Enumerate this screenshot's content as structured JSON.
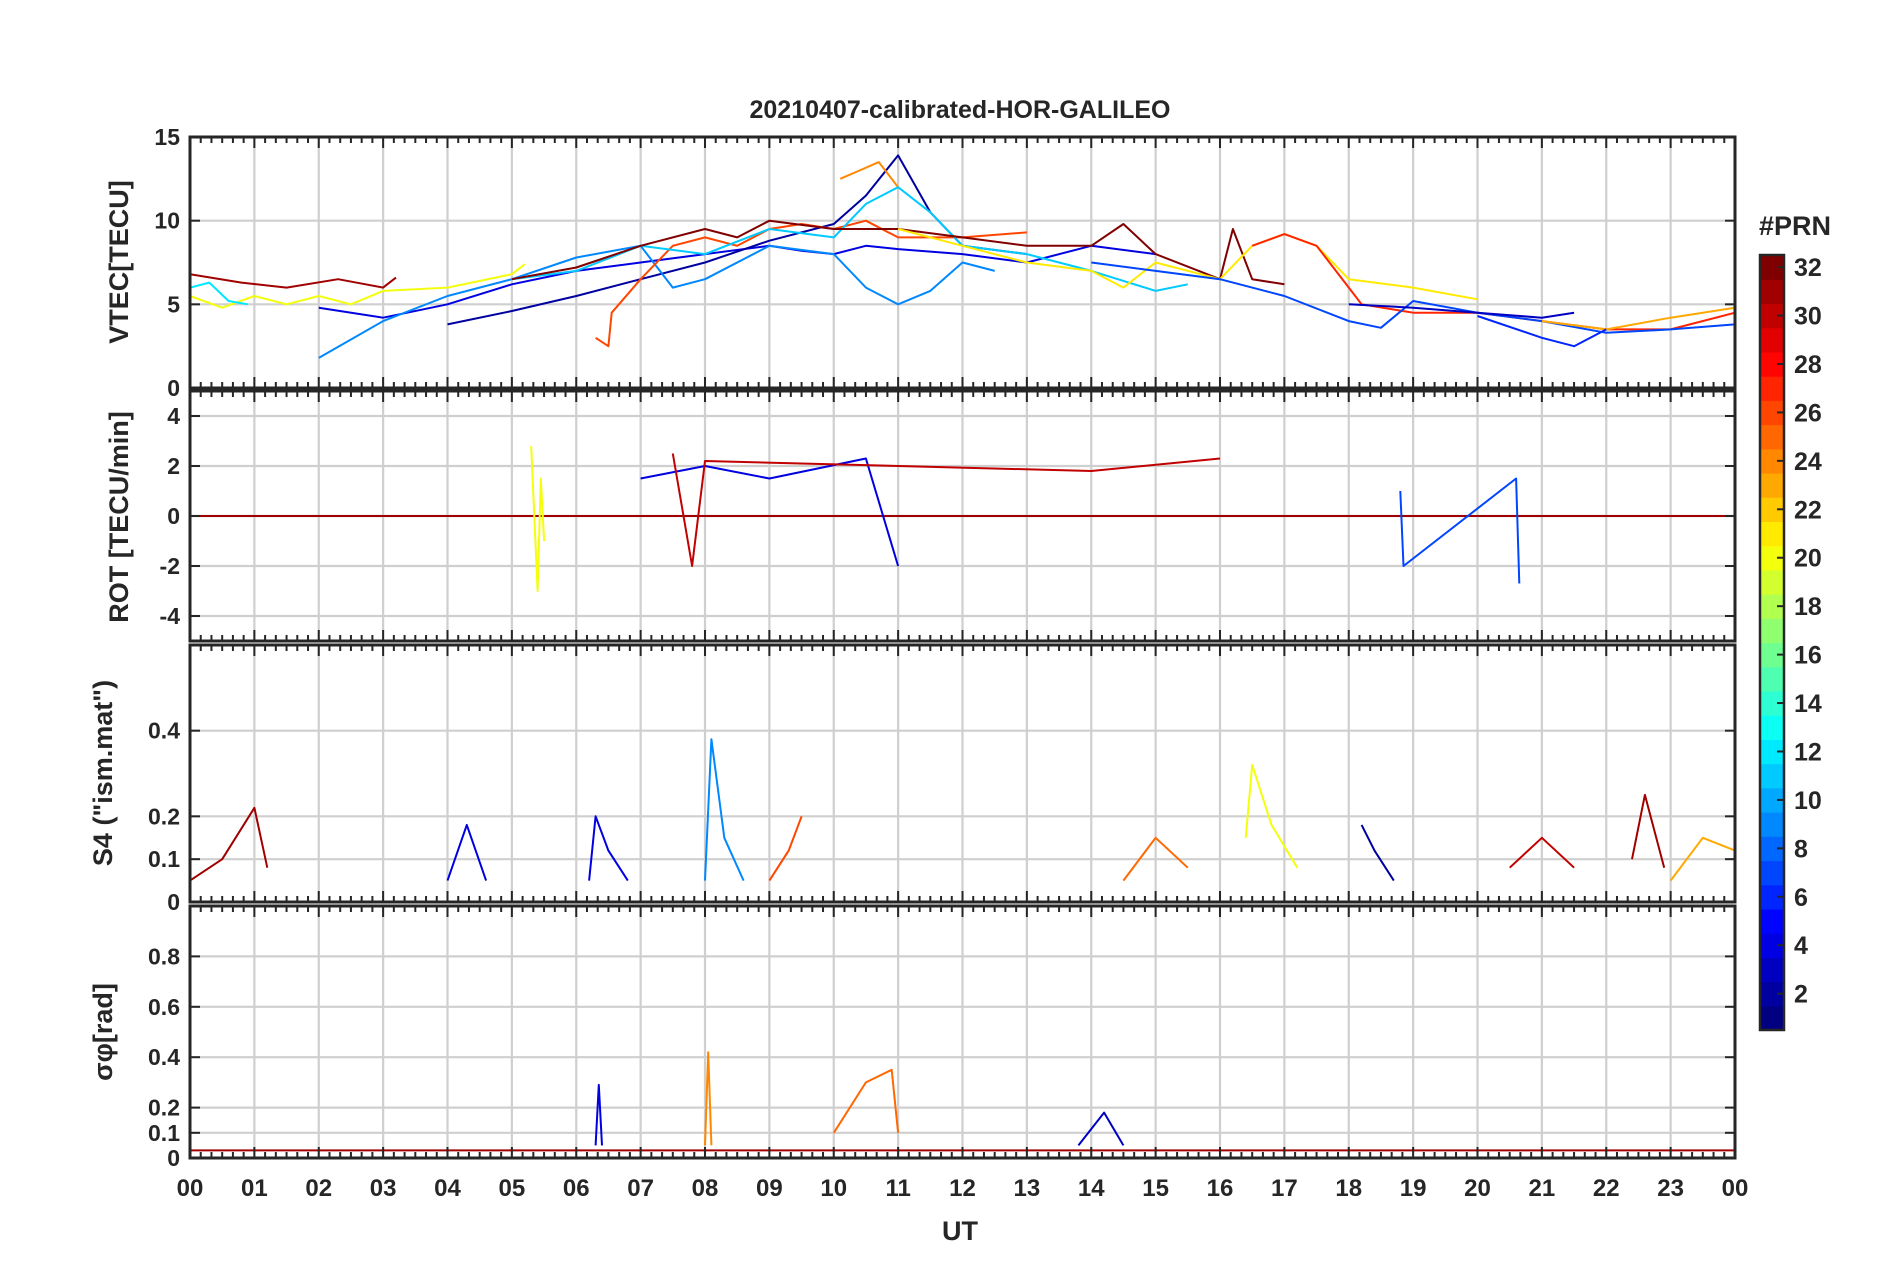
{
  "chart_data": {
    "type": "line",
    "title": "20210407-calibrated-HOR-GALILEO",
    "xlabel": "UT",
    "x_tick_labels": [
      "00",
      "01",
      "02",
      "03",
      "04",
      "05",
      "06",
      "07",
      "08",
      "09",
      "10",
      "11",
      "12",
      "13",
      "14",
      "15",
      "16",
      "17",
      "18",
      "19",
      "20",
      "21",
      "22",
      "23",
      "00"
    ],
    "x_range_hours": [
      0,
      24
    ],
    "grid": true,
    "colorbar": {
      "title": "#PRN",
      "range": [
        1,
        32
      ],
      "tick_labels": [
        "2",
        "4",
        "6",
        "8",
        "10",
        "12",
        "14",
        "16",
        "18",
        "20",
        "22",
        "24",
        "26",
        "28",
        "30",
        "32"
      ],
      "colormap": "jet"
    },
    "panels": [
      {
        "ylabel": "VTEC[TECU]",
        "ylim": [
          0,
          15
        ],
        "y_ticks": [
          0,
          5,
          10,
          15
        ],
        "y_tick_labels": [
          "0",
          "5",
          "10",
          "15"
        ],
        "series": [
          {
            "prn": 31,
            "t": [
              0.0,
              0.8,
              1.5,
              2.3,
              3.0,
              3.2
            ],
            "v": [
              6.8,
              6.3,
              6.0,
              6.5,
              6.0,
              6.6
            ]
          },
          {
            "prn": 20,
            "t": [
              0.0,
              0.5,
              1.0,
              1.5,
              2.0,
              2.5,
              3.0,
              4.0,
              5.0,
              5.2
            ],
            "v": [
              5.5,
              4.8,
              5.5,
              5.0,
              5.5,
              5.0,
              5.8,
              6.0,
              6.8,
              7.4
            ]
          },
          {
            "prn": 12,
            "t": [
              0.0,
              0.3,
              0.6,
              0.9
            ],
            "v": [
              6.0,
              6.3,
              5.2,
              5.0
            ]
          },
          {
            "prn": 4,
            "t": [
              2.0,
              3.0,
              4.0,
              5.0,
              6.0,
              7.0,
              8.0,
              9.0,
              9.5,
              10.0,
              10.5,
              11.0,
              12.0,
              13.0,
              14.0,
              15.0
            ],
            "v": [
              4.8,
              4.2,
              5.0,
              6.2,
              7.0,
              7.5,
              8.0,
              8.5,
              8.2,
              8.0,
              8.5,
              8.3,
              8.0,
              7.5,
              8.5,
              8.0
            ]
          },
          {
            "prn": 2,
            "t": [
              4.0,
              5.0,
              6.0,
              7.0,
              8.0,
              9.0,
              10.0,
              10.5,
              11.0,
              11.5,
              12.0,
              13.0
            ],
            "v": [
              3.8,
              4.6,
              5.5,
              6.5,
              7.5,
              8.8,
              9.8,
              11.5,
              13.9,
              10.5,
              8.5,
              8.0
            ]
          },
          {
            "prn": 9,
            "t": [
              2.0,
              3.0,
              4.0,
              5.0,
              6.0,
              7.0,
              7.5,
              8.0,
              9.0,
              10.0,
              10.5,
              11.0,
              11.5,
              12.0,
              12.5
            ],
            "v": [
              1.8,
              4.0,
              5.5,
              6.5,
              7.8,
              8.5,
              6.0,
              6.5,
              8.5,
              8.0,
              6.0,
              5.0,
              5.8,
              7.5,
              7.0
            ]
          },
          {
            "prn": 26,
            "t": [
              6.3,
              6.5,
              6.55,
              7.0,
              7.5,
              8.0,
              8.5,
              9.0,
              9.5,
              10.0,
              10.5,
              11.0,
              12.0,
              13.0
            ],
            "v": [
              3.0,
              2.5,
              4.5,
              6.5,
              8.5,
              9.0,
              8.5,
              9.5,
              9.8,
              9.5,
              10.0,
              9.0,
              9.0,
              9.3
            ]
          },
          {
            "prn": 24,
            "t": [
              10.1,
              10.4,
              10.7,
              11.0
            ],
            "v": [
              12.5,
              13.0,
              13.5,
              12.0
            ]
          },
          {
            "prn": 11,
            "t": [
              5.0,
              6.0,
              7.0,
              8.0,
              9.0,
              10.0,
              10.5,
              11.0,
              11.5,
              12.0,
              13.0,
              14.0,
              15.0,
              15.5
            ],
            "v": [
              6.5,
              7.0,
              8.5,
              8.0,
              9.5,
              9.0,
              11.0,
              12.0,
              10.5,
              8.5,
              8.0,
              7.0,
              5.8,
              6.2
            ]
          },
          {
            "prn": 32,
            "t": [
              5.0,
              6.0,
              7.0,
              8.0,
              8.5,
              9.0,
              10.0,
              11.0,
              12.0,
              13.0,
              14.0,
              14.5,
              15.0,
              16.0,
              16.2,
              16.5,
              17.0
            ],
            "v": [
              6.5,
              7.2,
              8.5,
              9.5,
              9.0,
              10.0,
              9.5,
              9.5,
              9.0,
              8.5,
              8.5,
              9.8,
              8.0,
              6.5,
              9.5,
              6.5,
              6.2
            ]
          },
          {
            "prn": 21,
            "t": [
              11.0,
              12.0,
              13.0,
              14.0,
              14.5,
              15.0,
              16.0,
              16.5,
              17.0,
              17.5,
              18.0,
              19.0,
              20.0
            ],
            "v": [
              9.5,
              8.5,
              7.5,
              7.0,
              6.0,
              7.5,
              6.5,
              8.5,
              9.2,
              8.5,
              6.5,
              6.0,
              5.3
            ]
          },
          {
            "prn": 27,
            "t": [
              16.5,
              17.0,
              17.5,
              18.0,
              18.2,
              19.0,
              20.0,
              21.0,
              22.0,
              23.0,
              24.0
            ],
            "v": [
              8.5,
              9.2,
              8.5,
              6.0,
              5.0,
              4.5,
              4.5,
              4.0,
              3.5,
              3.5,
              4.5
            ]
          },
          {
            "prn": 7,
            "t": [
              14.0,
              15.0,
              16.0,
              17.0,
              18.0,
              18.5,
              19.0,
              20.0,
              21.0,
              22.0,
              23.0,
              24.0
            ],
            "v": [
              7.5,
              7.0,
              6.5,
              5.5,
              4.0,
              3.6,
              5.2,
              4.5,
              4.0,
              3.3,
              3.5,
              3.8
            ]
          },
          {
            "prn": 3,
            "t": [
              18.0,
              19.0,
              20.0,
              21.0,
              21.5
            ],
            "v": [
              5.0,
              4.8,
              4.5,
              4.2,
              4.5
            ]
          },
          {
            "prn": 23,
            "t": [
              21.0,
              22.0,
              23.0,
              24.0
            ],
            "v": [
              4.0,
              3.5,
              4.2,
              4.8
            ]
          },
          {
            "prn": 6,
            "t": [
              20.0,
              21.0,
              21.5,
              22.0
            ],
            "v": [
              4.3,
              3.0,
              2.5,
              3.5
            ]
          }
        ]
      },
      {
        "ylabel": "ROT [TECU/min]",
        "ylim": [
          -5,
          5
        ],
        "y_ticks": [
          -4,
          -2,
          0,
          2,
          4
        ],
        "y_tick_labels": [
          "-4",
          "-2",
          "0",
          "2",
          "4"
        ],
        "series": [
          {
            "prn": 31,
            "t": [
              0,
              24
            ],
            "v": [
              0,
              0
            ]
          },
          {
            "prn": 20,
            "t": [
              5.3,
              5.4,
              5.45,
              5.5
            ],
            "v": [
              2.8,
              -3.0,
              1.5,
              -1.0
            ]
          },
          {
            "prn": 4,
            "t": [
              7.0,
              8.0,
              9.0,
              10.5,
              11.0
            ],
            "v": [
              1.5,
              2.0,
              1.5,
              2.3,
              -2.0
            ]
          },
          {
            "prn": 7,
            "t": [
              18.8,
              18.85,
              20.6,
              20.65
            ],
            "v": [
              1.0,
              -2.0,
              1.5,
              -2.7
            ]
          },
          {
            "prn": 30,
            "t": [
              7.5,
              7.8,
              8.0,
              14.0,
              16.0
            ],
            "v": [
              2.5,
              -2.0,
              2.2,
              1.8,
              2.3
            ]
          }
        ]
      },
      {
        "ylabel": "S4 (\"ism.mat\")",
        "ylim": [
          0,
          0.6
        ],
        "y_ticks": [
          0,
          0.1,
          0.2,
          0.4
        ],
        "y_tick_labels": [
          "0",
          "0.1",
          "0.2",
          "0.4"
        ],
        "series": [
          {
            "prn": 31,
            "t": [
              0.0,
              0.5,
              1.0,
              1.2
            ],
            "v": [
              0.05,
              0.1,
              0.22,
              0.08
            ]
          },
          {
            "prn": 4,
            "t": [
              4.0,
              4.3,
              4.6
            ],
            "v": [
              0.05,
              0.18,
              0.05
            ]
          },
          {
            "prn": 4,
            "t": [
              6.2,
              6.3,
              6.5,
              6.8
            ],
            "v": [
              0.05,
              0.2,
              0.12,
              0.05
            ]
          },
          {
            "prn": 9,
            "t": [
              8.0,
              8.1,
              8.3,
              8.6
            ],
            "v": [
              0.05,
              0.38,
              0.15,
              0.05
            ]
          },
          {
            "prn": 26,
            "t": [
              9.0,
              9.3,
              9.5
            ],
            "v": [
              0.05,
              0.12,
              0.2
            ]
          },
          {
            "prn": 25,
            "t": [
              14.5,
              15.0,
              15.5
            ],
            "v": [
              0.05,
              0.15,
              0.08
            ]
          },
          {
            "prn": 20,
            "t": [
              16.4,
              16.5,
              16.8,
              17.2
            ],
            "v": [
              0.15,
              0.32,
              0.18,
              0.08
            ]
          },
          {
            "prn": 2,
            "t": [
              18.2,
              18.4,
              18.7
            ],
            "v": [
              0.18,
              0.12,
              0.05
            ]
          },
          {
            "prn": 30,
            "t": [
              20.5,
              21.0,
              21.5
            ],
            "v": [
              0.08,
              0.15,
              0.08
            ]
          },
          {
            "prn": 31,
            "t": [
              22.4,
              22.6,
              22.9
            ],
            "v": [
              0.1,
              0.25,
              0.08
            ]
          },
          {
            "prn": 23,
            "t": [
              23.0,
              23.5,
              24.0
            ],
            "v": [
              0.05,
              0.15,
              0.12
            ]
          }
        ]
      },
      {
        "ylabel": "σφ[rad]",
        "ylim": [
          0,
          1
        ],
        "y_ticks": [
          0,
          0.1,
          0.2,
          0.4,
          0.6,
          0.8
        ],
        "y_tick_labels": [
          "0",
          "0.1",
          "0.2",
          "0.4",
          "0.6",
          "0.8"
        ],
        "series": [
          {
            "prn": 31,
            "t": [
              0,
              24
            ],
            "v": [
              0.03,
              0.03
            ]
          },
          {
            "prn": 4,
            "t": [
              6.3,
              6.35,
              6.4
            ],
            "v": [
              0.05,
              0.29,
              0.05
            ]
          },
          {
            "prn": 24,
            "t": [
              8.0,
              8.05,
              8.1
            ],
            "v": [
              0.05,
              0.42,
              0.05
            ]
          },
          {
            "prn": 25,
            "t": [
              10.0,
              10.5,
              10.9,
              11.0
            ],
            "v": [
              0.1,
              0.3,
              0.35,
              0.1
            ]
          },
          {
            "prn": 3,
            "t": [
              13.8,
              14.2,
              14.5
            ],
            "v": [
              0.05,
              0.18,
              0.05
            ]
          }
        ]
      }
    ]
  }
}
